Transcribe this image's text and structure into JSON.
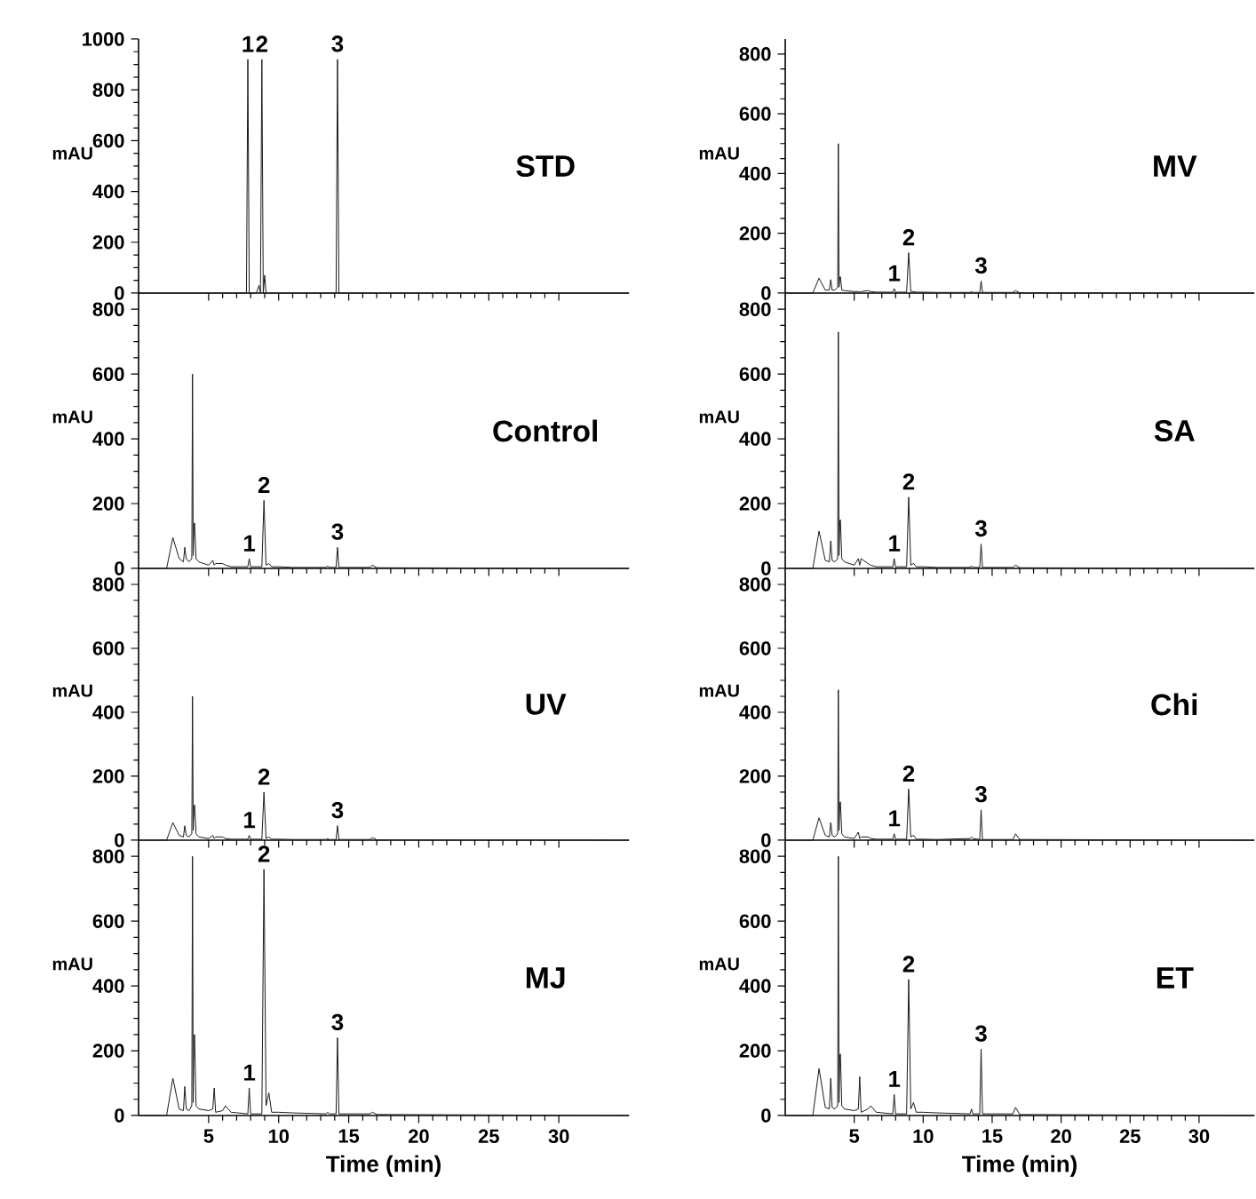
{
  "chart_data": [
    {
      "type": "line",
      "title": "STD",
      "ylabel": "mAU",
      "xlim": [
        0,
        35
      ],
      "ylim": [
        0,
        1000
      ],
      "xticks": [
        5,
        10,
        15,
        20,
        25,
        30
      ],
      "yticks": [
        0,
        200,
        400,
        600,
        800,
        1000
      ],
      "tick_labels": "y",
      "x": [
        0,
        7.6,
        7.7,
        7.8,
        7.9,
        8.4,
        8.6,
        8.7,
        8.8,
        8.9,
        9.0,
        9.1,
        14.0,
        14.1,
        14.2,
        14.3,
        35
      ],
      "series": [
        {
          "color": "#1a1a1a",
          "values": [
            0,
            0,
            0,
            920,
            0,
            0,
            30,
            0,
            920,
            0,
            70,
            0,
            0,
            0,
            920,
            0,
            0
          ]
        }
      ],
      "annotations": [
        {
          "text": "1",
          "x": 7.8,
          "y": 920
        },
        {
          "text": "2",
          "x": 8.8,
          "y": 920
        },
        {
          "text": "3",
          "x": 14.2,
          "y": 920
        }
      ]
    },
    {
      "type": "line",
      "title": "MV",
      "ylabel": "mAU",
      "xlim": [
        0,
        34
      ],
      "ylim": [
        0,
        850
      ],
      "xticks": [
        5,
        10,
        15,
        20,
        25,
        30
      ],
      "yticks": [
        0,
        200,
        400,
        600,
        800
      ],
      "tick_labels": "y",
      "x": [
        0,
        2.0,
        2.45,
        2.9,
        3.2,
        3.3,
        3.4,
        3.6,
        3.8,
        3.85,
        3.9,
        3.95,
        4.0,
        4.1,
        4.3,
        5.0,
        5.3,
        5.4,
        5.5,
        6.0,
        6.2,
        6.6,
        7.8,
        7.9,
        8.0,
        8.8,
        8.95,
        9.1,
        9.3,
        9.5,
        10.0,
        11.0,
        13.4,
        13.5,
        13.6,
        14.1,
        14.2,
        14.3,
        16.5,
        16.7,
        17.0,
        34
      ],
      "series": [
        {
          "color": "#1a1a1a",
          "values": [
            0,
            0,
            50,
            10,
            10,
            45,
            10,
            10,
            20,
            500,
            20,
            50,
            55,
            10,
            8,
            5,
            5,
            3,
            5,
            8,
            5,
            3,
            3,
            15,
            3,
            3,
            135,
            5,
            5,
            3,
            3,
            2,
            2,
            5,
            2,
            2,
            40,
            2,
            2,
            8,
            1,
            0
          ]
        }
      ],
      "annotations": [
        {
          "text": "1",
          "x": 7.9,
          "y": 15
        },
        {
          "text": "2",
          "x": 8.95,
          "y": 135
        },
        {
          "text": "3",
          "x": 14.2,
          "y": 40
        }
      ]
    },
    {
      "type": "line",
      "title": "Control",
      "ylabel": "mAU",
      "xlim": [
        0,
        35
      ],
      "ylim": [
        0,
        850
      ],
      "xticks": [
        5,
        10,
        15,
        20,
        25,
        30
      ],
      "yticks": [
        0,
        200,
        400,
        600,
        800
      ],
      "tick_labels": "y",
      "x": [
        0,
        2.0,
        2.45,
        2.9,
        3.2,
        3.3,
        3.4,
        3.6,
        3.8,
        3.85,
        3.9,
        3.95,
        4.0,
        4.1,
        4.3,
        5.0,
        5.3,
        5.4,
        5.5,
        6.0,
        6.2,
        6.6,
        7.8,
        7.9,
        8.0,
        8.8,
        8.95,
        9.1,
        9.3,
        9.5,
        10.0,
        11.0,
        13.4,
        13.5,
        13.6,
        14.1,
        14.2,
        14.3,
        16.5,
        16.7,
        17.0,
        35
      ],
      "series": [
        {
          "color": "#1a1a1a",
          "values": [
            0,
            0,
            95,
            30,
            20,
            65,
            30,
            20,
            30,
            600,
            40,
            130,
            140,
            30,
            20,
            10,
            25,
            10,
            15,
            15,
            10,
            5,
            5,
            30,
            5,
            5,
            210,
            10,
            15,
            5,
            5,
            3,
            3,
            8,
            3,
            3,
            65,
            3,
            3,
            10,
            2,
            0
          ]
        }
      ],
      "annotations": [
        {
          "text": "1",
          "x": 7.9,
          "y": 30
        },
        {
          "text": "2",
          "x": 8.95,
          "y": 210
        },
        {
          "text": "3",
          "x": 14.2,
          "y": 65
        }
      ]
    },
    {
      "type": "line",
      "title": "SA",
      "ylabel": "mAU",
      "xlim": [
        0,
        34
      ],
      "ylim": [
        0,
        850
      ],
      "xticks": [
        5,
        10,
        15,
        20,
        25,
        30
      ],
      "yticks": [
        0,
        200,
        400,
        600,
        800
      ],
      "tick_labels": "y",
      "x": [
        0,
        2.0,
        2.45,
        2.9,
        3.2,
        3.3,
        3.4,
        3.6,
        3.8,
        3.85,
        3.9,
        3.95,
        4.0,
        4.1,
        4.3,
        5.0,
        5.3,
        5.4,
        5.5,
        6.0,
        6.2,
        6.6,
        7.8,
        7.9,
        8.0,
        8.8,
        8.95,
        9.1,
        9.3,
        9.5,
        10.0,
        11.0,
        13.4,
        13.5,
        13.6,
        14.1,
        14.2,
        14.3,
        16.5,
        16.7,
        17.0,
        34
      ],
      "series": [
        {
          "color": "#1a1a1a",
          "values": [
            0,
            0,
            115,
            25,
            20,
            85,
            25,
            20,
            30,
            730,
            40,
            140,
            150,
            30,
            20,
            10,
            30,
            10,
            30,
            15,
            10,
            5,
            5,
            30,
            5,
            5,
            220,
            10,
            15,
            5,
            5,
            3,
            3,
            8,
            3,
            3,
            75,
            3,
            3,
            10,
            2,
            0
          ]
        }
      ],
      "annotations": [
        {
          "text": "1",
          "x": 7.9,
          "y": 30
        },
        {
          "text": "2",
          "x": 8.95,
          "y": 220
        },
        {
          "text": "3",
          "x": 14.2,
          "y": 75
        }
      ]
    },
    {
      "type": "line",
      "title": "UV",
      "ylabel": "mAU",
      "xlim": [
        0,
        35
      ],
      "ylim": [
        0,
        850
      ],
      "xticks": [
        5,
        10,
        15,
        20,
        25,
        30
      ],
      "yticks": [
        0,
        200,
        400,
        600,
        800
      ],
      "tick_labels": "y",
      "x": [
        0,
        2.0,
        2.45,
        2.9,
        3.2,
        3.3,
        3.4,
        3.6,
        3.8,
        3.85,
        3.9,
        3.95,
        4.0,
        4.1,
        4.3,
        5.0,
        5.3,
        5.4,
        5.5,
        6.0,
        6.2,
        6.6,
        7.8,
        7.9,
        8.0,
        8.8,
        8.95,
        9.1,
        9.3,
        9.5,
        10.0,
        11.0,
        13.4,
        13.5,
        13.6,
        14.1,
        14.2,
        14.3,
        16.5,
        16.7,
        17.0,
        35
      ],
      "series": [
        {
          "color": "#1a1a1a",
          "values": [
            0,
            0,
            55,
            15,
            10,
            45,
            15,
            10,
            20,
            450,
            30,
            100,
            110,
            20,
            10,
            5,
            15,
            5,
            10,
            10,
            5,
            3,
            3,
            15,
            3,
            3,
            150,
            5,
            10,
            3,
            3,
            2,
            2,
            5,
            2,
            2,
            45,
            2,
            2,
            8,
            1,
            0
          ]
        }
      ],
      "annotations": [
        {
          "text": "1",
          "x": 7.9,
          "y": 15
        },
        {
          "text": "2",
          "x": 8.95,
          "y": 150
        },
        {
          "text": "3",
          "x": 14.2,
          "y": 45
        }
      ]
    },
    {
      "type": "line",
      "title": "Chi",
      "ylabel": "mAU",
      "xlim": [
        0,
        34
      ],
      "ylim": [
        0,
        850
      ],
      "xticks": [
        5,
        10,
        15,
        20,
        25,
        30
      ],
      "yticks": [
        0,
        200,
        400,
        600,
        800
      ],
      "tick_labels": "y",
      "x": [
        0,
        2.0,
        2.45,
        2.9,
        3.2,
        3.3,
        3.4,
        3.6,
        3.8,
        3.85,
        3.9,
        3.95,
        4.0,
        4.1,
        4.3,
        5.0,
        5.3,
        5.4,
        5.5,
        6.0,
        6.2,
        6.6,
        7.8,
        7.9,
        8.0,
        8.8,
        8.95,
        9.1,
        9.3,
        9.5,
        10.0,
        11.0,
        13.4,
        13.5,
        13.6,
        14.1,
        14.2,
        14.3,
        16.5,
        16.7,
        17.0,
        34
      ],
      "series": [
        {
          "color": "#1a1a1a",
          "values": [
            0,
            0,
            70,
            15,
            10,
            55,
            15,
            10,
            20,
            470,
            30,
            110,
            120,
            20,
            10,
            5,
            25,
            5,
            10,
            10,
            5,
            3,
            3,
            20,
            3,
            3,
            160,
            10,
            15,
            3,
            3,
            2,
            5,
            10,
            5,
            2,
            95,
            2,
            2,
            20,
            2,
            0
          ]
        }
      ],
      "annotations": [
        {
          "text": "1",
          "x": 7.9,
          "y": 20
        },
        {
          "text": "2",
          "x": 8.95,
          "y": 160
        },
        {
          "text": "3",
          "x": 14.2,
          "y": 95
        }
      ]
    },
    {
      "type": "line",
      "title": "MJ",
      "xlabel": "Time (min)",
      "ylabel": "mAU",
      "xlim": [
        0,
        35
      ],
      "ylim": [
        0,
        850
      ],
      "xticks": [
        5,
        10,
        15,
        20,
        25,
        30
      ],
      "yticks": [
        0,
        200,
        400,
        600,
        800
      ],
      "x": [
        0,
        2.0,
        2.45,
        2.9,
        3.2,
        3.3,
        3.4,
        3.6,
        3.8,
        3.85,
        3.9,
        3.95,
        4.0,
        4.1,
        4.3,
        5.0,
        5.3,
        5.4,
        5.5,
        6.0,
        6.2,
        6.6,
        7.8,
        7.9,
        8.0,
        8.8,
        8.95,
        9.1,
        9.3,
        9.5,
        10.0,
        11.0,
        13.4,
        13.5,
        13.6,
        14.1,
        14.2,
        14.3,
        16.5,
        16.7,
        17.0,
        35
      ],
      "series": [
        {
          "color": "#1a1a1a",
          "values": [
            0,
            0,
            115,
            20,
            15,
            90,
            20,
            15,
            30,
            800,
            40,
            240,
            250,
            30,
            20,
            15,
            20,
            85,
            10,
            15,
            30,
            10,
            5,
            85,
            5,
            5,
            760,
            30,
            70,
            10,
            10,
            8,
            5,
            10,
            5,
            5,
            240,
            5,
            5,
            10,
            3,
            0
          ]
        }
      ],
      "annotations": [
        {
          "text": "1",
          "x": 7.9,
          "y": 85
        },
        {
          "text": "2",
          "x": 8.95,
          "y": 760
        },
        {
          "text": "3",
          "x": 14.2,
          "y": 240
        }
      ]
    },
    {
      "type": "line",
      "title": "ET",
      "xlabel": "Time (min)",
      "ylabel": "mAU",
      "xlim": [
        0,
        34
      ],
      "ylim": [
        0,
        850
      ],
      "xticks": [
        5,
        10,
        15,
        20,
        25,
        30
      ],
      "yticks": [
        0,
        200,
        400,
        600,
        800
      ],
      "x": [
        0,
        2.0,
        2.45,
        2.9,
        3.2,
        3.3,
        3.4,
        3.6,
        3.8,
        3.85,
        3.9,
        3.95,
        4.0,
        4.1,
        4.3,
        5.0,
        5.3,
        5.4,
        5.5,
        6.0,
        6.2,
        6.6,
        7.8,
        7.9,
        8.0,
        8.8,
        8.95,
        9.1,
        9.3,
        9.5,
        10.0,
        11.0,
        13.4,
        13.5,
        13.6,
        14.1,
        14.2,
        14.3,
        16.5,
        16.7,
        17.0,
        34
      ],
      "series": [
        {
          "color": "#1a1a1a",
          "values": [
            0,
            0,
            145,
            25,
            20,
            115,
            25,
            20,
            30,
            800,
            40,
            180,
            190,
            30,
            20,
            15,
            20,
            120,
            10,
            20,
            30,
            10,
            5,
            65,
            5,
            5,
            420,
            20,
            40,
            10,
            10,
            8,
            5,
            20,
            5,
            5,
            205,
            5,
            5,
            25,
            3,
            0
          ]
        }
      ],
      "annotations": [
        {
          "text": "1",
          "x": 7.9,
          "y": 65
        },
        {
          "text": "2",
          "x": 8.95,
          "y": 420
        },
        {
          "text": "3",
          "x": 14.2,
          "y": 205
        }
      ]
    }
  ]
}
